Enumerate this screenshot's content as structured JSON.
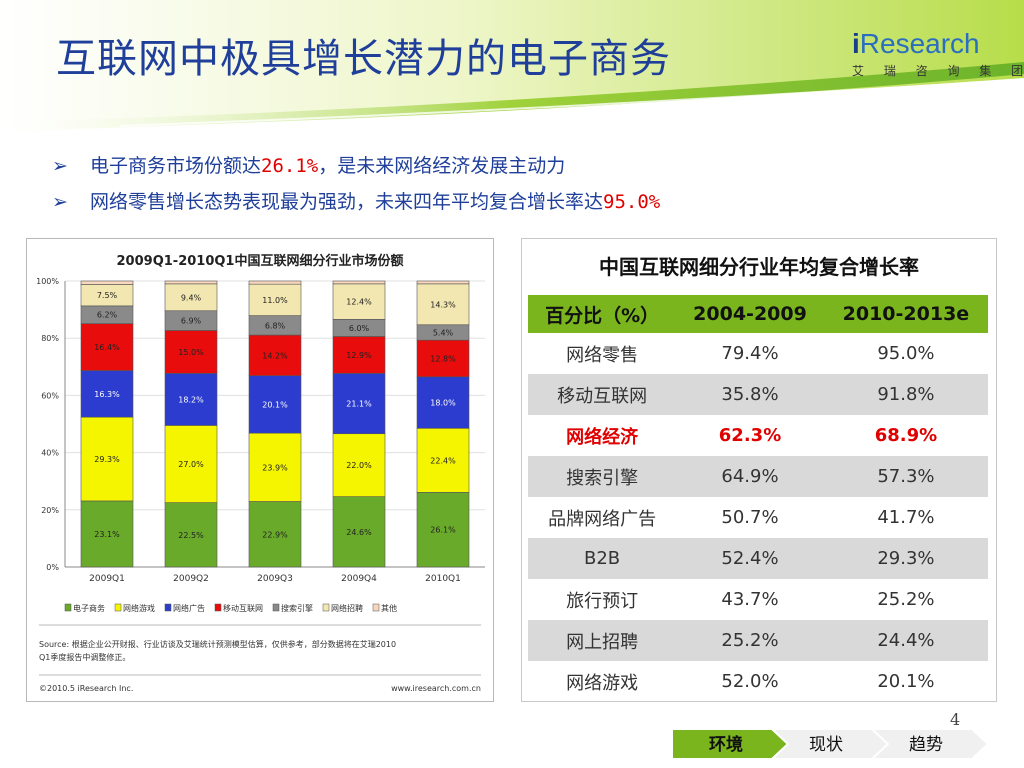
{
  "slide": {
    "title": "互联网中极具增长潜力的电子商务",
    "page_number": "4",
    "accent_color": "#1f3f9a",
    "highlight_color": "#e00000"
  },
  "logo": {
    "i": "i",
    "word": "Research",
    "subtitle": "艾 瑞 咨 询 集 团"
  },
  "bullets": [
    {
      "prefix": "电子商务市场份额达",
      "highlight": "26.1%",
      "suffix": "，是未来网络经济发展主动力"
    },
    {
      "prefix": "网络零售增长态势表现最为强劲，未来四年平均复合增长率达",
      "highlight": "95.0%",
      "suffix": ""
    }
  ],
  "chart_data": {
    "type": "bar",
    "stacked": true,
    "title": "2009Q1-2010Q1中国互联网细分行业市场份额",
    "categories": [
      "2009Q1",
      "2009Q2",
      "2009Q3",
      "2009Q4",
      "2010Q1"
    ],
    "y_ticks": [
      "0%",
      "20%",
      "40%",
      "60%",
      "80%",
      "100%"
    ],
    "ylim": [
      0,
      100
    ],
    "legend_position": "bottom",
    "series": [
      {
        "name": "电子商务",
        "color": "#6aaa2a",
        "values": [
          23.1,
          22.5,
          22.9,
          24.6,
          26.1
        ],
        "labels": [
          "23.1%",
          "22.5%",
          "22.9%",
          "24.6%",
          "26.1%"
        ]
      },
      {
        "name": "网络游戏",
        "color": "#f5f500",
        "values": [
          29.3,
          27.0,
          23.9,
          22.0,
          22.4
        ],
        "labels": [
          "29.3%",
          "27.0%",
          "23.9%",
          "22.0%",
          "22.4%"
        ]
      },
      {
        "name": "网络广告",
        "color": "#2b3ccf",
        "values": [
          16.3,
          18.2,
          20.1,
          21.1,
          18.0
        ],
        "labels": [
          "16.3%",
          "18.2%",
          "20.1%",
          "21.1%",
          "18.0%"
        ]
      },
      {
        "name": "移动互联网",
        "color": "#e80c0c",
        "values": [
          16.4,
          15.0,
          14.2,
          12.9,
          12.8
        ],
        "labels": [
          "16.4%",
          "15.0%",
          "14.2%",
          "12.9%",
          "12.8%"
        ]
      },
      {
        "name": "搜索引擎",
        "color": "#8a8a8a",
        "values": [
          6.2,
          6.9,
          6.8,
          6.0,
          5.4
        ],
        "labels": [
          "6.2%",
          "6.9%",
          "6.8%",
          "6.0%",
          "5.4%"
        ]
      },
      {
        "name": "网络招聘",
        "color": "#f2e7b0",
        "values": [
          7.5,
          9.4,
          11.0,
          12.4,
          14.3
        ],
        "labels": [
          "7.5%",
          "9.4%",
          "11.0%",
          "12.4%",
          "14.3%"
        ]
      },
      {
        "name": "其他",
        "color": "#f8d7bc",
        "values": [
          1.2,
          1.0,
          1.1,
          1.0,
          1.0
        ],
        "labels": [
          "",
          "",
          "",
          "",
          ""
        ]
      }
    ],
    "source_text": "Source: 根据企业公开财报、行业访谈及艾瑞统计预测模型估算，仅供参考，部分数据将在艾瑞2010 Q1季度报告中调整修正。",
    "footer_left": "©2010.5 iResearch Inc.",
    "footer_right": "www.iresearch.com.cn"
  },
  "rate_table": {
    "title": "中国互联网细分行业年均复合增长率",
    "headers": [
      "百分比（%）",
      "2004-2009",
      "2010-2013e"
    ],
    "rows": [
      [
        "网络零售",
        "79.4%",
        "95.0%"
      ],
      [
        "移动互联网",
        "35.8%",
        "91.8%"
      ],
      [
        "网络经济",
        "62.3%",
        "68.9%"
      ],
      [
        "搜索引擎",
        "64.9%",
        "57.3%"
      ],
      [
        "品牌网络广告",
        "50.7%",
        "41.7%"
      ],
      [
        "B2B",
        "52.4%",
        "29.3%"
      ],
      [
        "旅行预订",
        "43.7%",
        "25.2%"
      ],
      [
        "网上招聘",
        "25.2%",
        "24.4%"
      ],
      [
        "网络游戏",
        "52.0%",
        "20.1%"
      ]
    ],
    "highlight_row": 2,
    "header_color": "#7ab51d",
    "stripe_color": "#d9d9d9"
  },
  "nav": {
    "tabs": [
      "环境",
      "现状",
      "趋势"
    ],
    "active_index": 0,
    "active_color": "#7ab51d"
  }
}
